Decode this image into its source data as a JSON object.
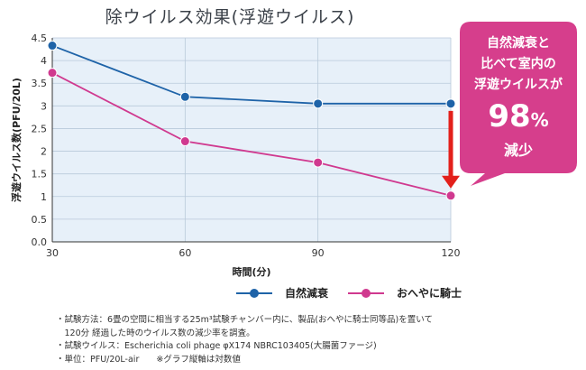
{
  "chart_data": {
    "type": "line",
    "title": "除ウイルス効果(浮遊ウイルス)",
    "xlabel": "時間(分)",
    "ylabel": "浮遊ウイルス数(PFU/20L)",
    "x": [
      30,
      60,
      90,
      120
    ],
    "x_ticks": [
      "30",
      "60",
      "90",
      "120"
    ],
    "xlim": [
      30,
      120
    ],
    "ylim": [
      0,
      4.5
    ],
    "y_ticks": [
      "0.0",
      "0.5",
      "1",
      "1.5",
      "2",
      "2.5",
      "3",
      "3.5",
      "4",
      "4.5"
    ],
    "grid": true,
    "legend_position": "bottom",
    "series": [
      {
        "name": "自然減衰",
        "color": "#1e63a8",
        "points": [
          [
            30,
            4.33
          ],
          [
            60,
            3.2
          ],
          [
            90,
            3.05
          ],
          [
            120,
            3.05
          ]
        ]
      },
      {
        "name": "おへやに騎士",
        "color": "#d0398f",
        "points": [
          [
            30,
            3.73
          ],
          [
            60,
            2.22
          ],
          [
            90,
            1.75
          ],
          [
            120,
            1.02
          ]
        ]
      }
    ],
    "annotation": {
      "line1": "自然減衰と",
      "line2": "比べて室内の",
      "line3": "浮遊ウイルスが",
      "value": "98",
      "unit": "%",
      "tail": "減少",
      "bubble_color": "#d63e8c",
      "arrow_color": "#e3201b"
    }
  },
  "notes": [
    "・試験方法：6畳の空間に相当する25m³試験チャンバー内に、製品(おへやに騎士同等品)を置いて",
    "　120分 経過した時のウイルス数の減少率を調査。",
    "・試験ウイルス：Escherichia coli phage φX174 NBRC103405(大腸菌ファージ)",
    "・単位：PFU/20L-air　　※グラフ縦軸は対数値"
  ]
}
